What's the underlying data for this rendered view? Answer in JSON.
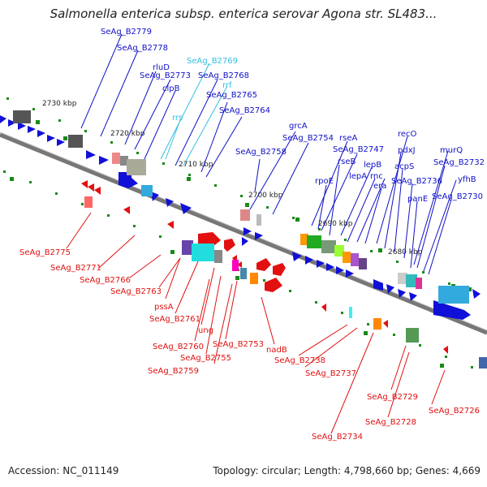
{
  "title": "Salmonella enterica subsp. enterica serovar Agona str. SL483...",
  "footer": {
    "accession": "Accession: NC_011149",
    "summary": "Topology: circular; Length: 4,798,660 bp; Genes: 4,669"
  },
  "colors": {
    "forward_label": "#1010c8",
    "reverse_label": "#e01010",
    "rna_label": "#33c0e0",
    "backbone": "#777777",
    "tick": "#1a8a1a"
  },
  "ticks": [
    "2730 kbp",
    "2720 kbp",
    "2710 kbp",
    "2700 kbp",
    "2690 kbp",
    "2680 kbp"
  ],
  "labels_top": [
    "SeAg_B2779",
    "SeAg_B2778",
    "rluD",
    "SeAg_B2773",
    "clpB",
    "SeAg_B2769",
    "SeAg_B2768",
    "rrf",
    "SeAg_B2765",
    "SeAg_B2764",
    "rrs",
    "grcA",
    "SeAg_B2758",
    "SeAg_B2754",
    "rseA",
    "SeAg_B2747",
    "rseB",
    "rpoE",
    "lepB",
    "lepA",
    "rnc",
    "era",
    "recO",
    "pdxJ",
    "acpS",
    "SeAg_B2736",
    "murQ",
    "SeAg_B2732",
    "yfhB",
    "panE",
    "SeAg_B2730"
  ],
  "labels_bottom": [
    "SeAg_B2775",
    "SeAg_B2771",
    "SeAg_B2766",
    "SeAg_B2763",
    "pssA",
    "SeAg_B2761",
    "ung",
    "SeAg_B2760",
    "SeAg_B2755",
    "SeAg_B2753",
    "SeAg_B2759",
    "nadB",
    "SeAg_B2738",
    "SeAg_B2737",
    "SeAg_B2729",
    "SeAg_B2728",
    "SeAg_B2726",
    "SeAg_B2734"
  ]
}
